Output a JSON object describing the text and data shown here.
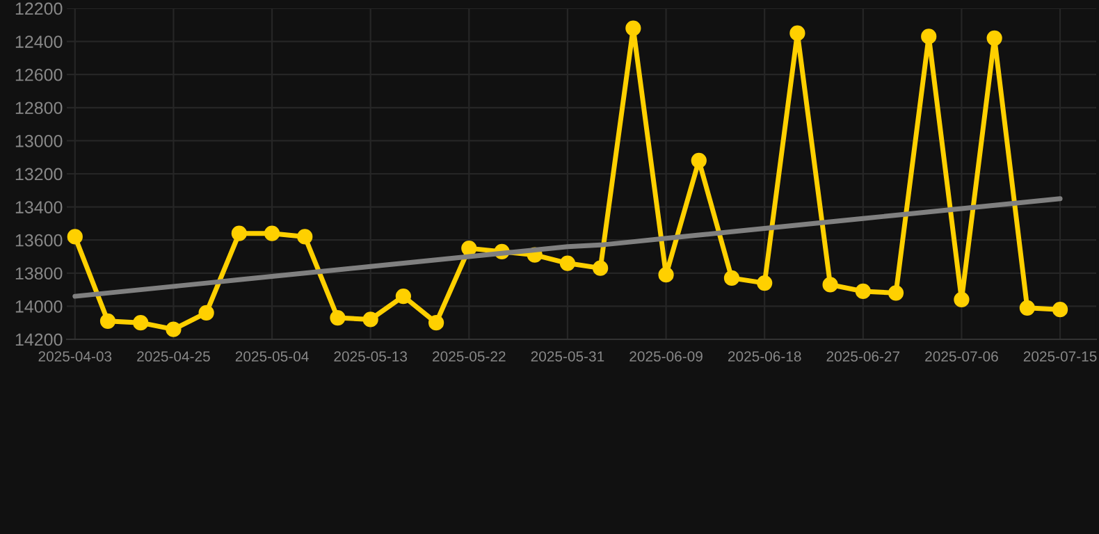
{
  "chart_data": {
    "type": "line",
    "categories": [
      "2025-04-03",
      null,
      null,
      "2025-04-25",
      null,
      null,
      "2025-05-04",
      null,
      null,
      "2025-05-13",
      null,
      null,
      "2025-05-22",
      null,
      null,
      "2025-05-31",
      null,
      null,
      "2025-06-09",
      null,
      null,
      "2025-06-18",
      null,
      null,
      "2025-06-27",
      null,
      null,
      "2025-07-06",
      null,
      null,
      "2025-07-15"
    ],
    "series": [
      {
        "color": "#ffd000",
        "marker": "circle",
        "values": [
          13580,
          14090,
          14100,
          14140,
          14040,
          13560,
          13560,
          13580,
          14070,
          14080,
          13940,
          14100,
          13650,
          13670,
          13690,
          13740,
          13770,
          12320,
          13810,
          13120,
          13830,
          13860,
          12350,
          13870,
          13910,
          13920,
          12370,
          13960,
          12380,
          14010,
          14020
        ]
      },
      {
        "type": "line",
        "color": "#808080",
        "marker": "none",
        "values": [
          13940,
          13920,
          13900,
          13880,
          13860,
          13840,
          13820,
          13800,
          13780,
          13760,
          13740,
          13720,
          13700,
          13680,
          13660,
          13640,
          13630,
          13610,
          13590,
          13570,
          13550,
          13530,
          13510,
          13490,
          13470,
          13450,
          13430,
          13410,
          13390,
          13370,
          13350
        ]
      }
    ],
    "ylim": [
      14200,
      12200
    ],
    "yticks": [
      12200,
      12400,
      12600,
      12800,
      13000,
      13200,
      13400,
      13600,
      13800,
      14000,
      14200
    ],
    "grid": true,
    "line_style": "solid"
  }
}
